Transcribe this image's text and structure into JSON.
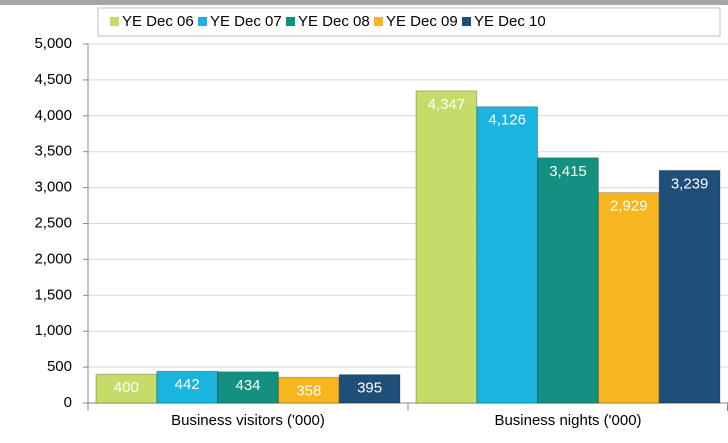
{
  "chart_data": {
    "type": "bar",
    "categories": [
      "Business visitors ('000)",
      "Business nights ('000)"
    ],
    "series": [
      {
        "name": "YE Dec 06",
        "color": "#c5dc6b",
        "values": [
          400,
          4347
        ],
        "value_labels": [
          "400",
          "4,347"
        ]
      },
      {
        "name": "YE Dec 07",
        "color": "#1ab4e0",
        "values": [
          442,
          4126
        ],
        "value_labels": [
          "442",
          "4,126"
        ]
      },
      {
        "name": "YE Dec 08",
        "color": "#13907f",
        "values": [
          434,
          3415
        ],
        "value_labels": [
          "434",
          "3,415"
        ]
      },
      {
        "name": "YE Dec 09",
        "color": "#f7b51f",
        "values": [
          358,
          2929
        ],
        "value_labels": [
          "358",
          "2,929"
        ]
      },
      {
        "name": "YE Dec 10",
        "color": "#1f4e79",
        "values": [
          395,
          3239
        ],
        "value_labels": [
          "395",
          "3,239"
        ]
      }
    ],
    "ylim": [
      0,
      5000
    ],
    "yticks": [
      0,
      500,
      {
        "value": 1000,
        "label": "1,000"
      },
      {
        "value": 1500,
        "label": "1,500"
      },
      {
        "value": 2000,
        "label": "2,000"
      },
      {
        "value": 2500,
        "label": "2,500"
      },
      {
        "value": 3000,
        "label": "3,000"
      },
      {
        "value": 3500,
        "label": "3,500"
      },
      {
        "value": 4000,
        "label": "4,000"
      },
      {
        "value": 4500,
        "label": "4,500"
      },
      {
        "value": 5000,
        "label": "5,000"
      }
    ],
    "grid": true,
    "legend": "top"
  }
}
